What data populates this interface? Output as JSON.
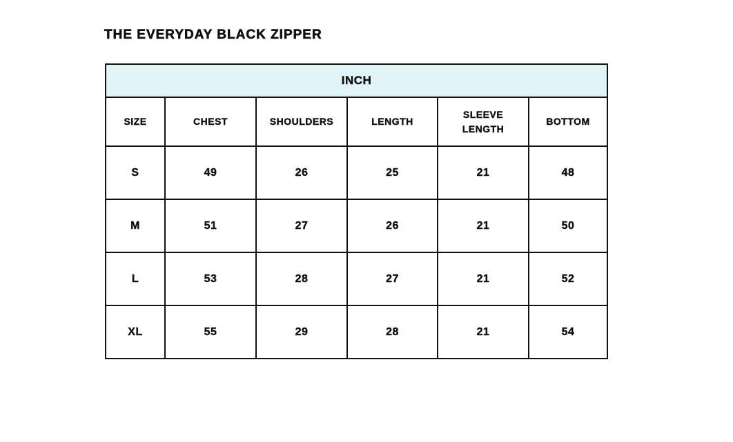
{
  "title": "THE EVERYDAY BLACK ZIPPER",
  "unit_band": "INCH",
  "band_color": "#e0f4f8",
  "columns": [
    "SIZE",
    "CHEST",
    "SHOULDERS",
    "LENGTH",
    "SLEEVE LENGTH",
    "BOTTOM"
  ],
  "rows": [
    [
      "S",
      "49",
      "26",
      "25",
      "21",
      "48"
    ],
    [
      "M",
      "51",
      "27",
      "26",
      "21",
      "50"
    ],
    [
      "L",
      "53",
      "28",
      "27",
      "21",
      "52"
    ],
    [
      "XL",
      "55",
      "29",
      "28",
      "21",
      "54"
    ]
  ]
}
